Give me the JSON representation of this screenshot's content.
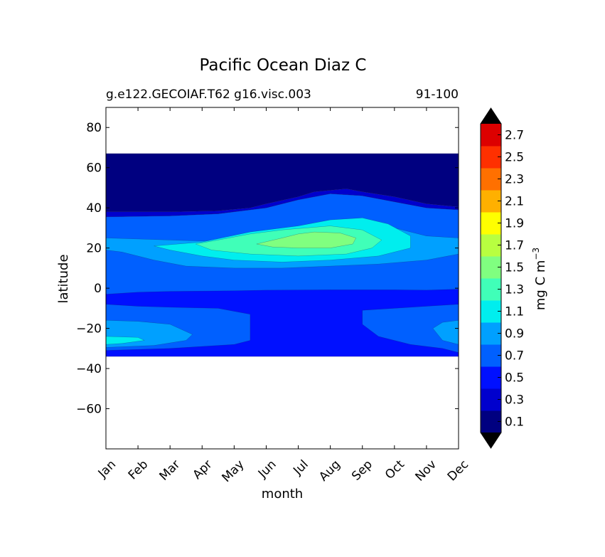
{
  "chart_data": {
    "type": "contourf",
    "title": "Pacific Ocean Diaz C",
    "subtitle_left": "g.e122.GECOIAF.T62 g16.visc.003",
    "subtitle_right": "91-100",
    "xlabel": "month",
    "ylabel": "latitude",
    "x_categories": [
      "Jan",
      "Feb",
      "Mar",
      "Apr",
      "May",
      "Jun",
      "Jul",
      "Aug",
      "Sep",
      "Oct",
      "Nov",
      "Dec"
    ],
    "ylim": [
      -80,
      90
    ],
    "y_ticks": [
      80,
      60,
      40,
      20,
      0,
      -20,
      -40,
      -60
    ],
    "y_tick_labels": [
      "80",
      "60",
      "40",
      "20",
      "0",
      "−20",
      "−40",
      "−60"
    ],
    "data_extent_lat": [
      -34,
      67
    ],
    "colorbar": {
      "label": "mg C m",
      "label_sup": "−3",
      "extend": "both",
      "levels": [
        0,
        0.1,
        0.2,
        0.3,
        0.4,
        0.5,
        0.6,
        0.7,
        0.8,
        0.9,
        1.0,
        1.1,
        1.2,
        1.3,
        1.4,
        1.5,
        1.6,
        1.7,
        1.8,
        1.9,
        2.0,
        2.1,
        2.2,
        2.3,
        2.4,
        2.5,
        2.6,
        2.7,
        2.8
      ],
      "tick_labels": [
        "0.1",
        "0.3",
        "0.5",
        "0.7",
        "0.9",
        "1.1",
        "1.3",
        "1.5",
        "1.7",
        "1.9",
        "2.1",
        "2.3",
        "2.5",
        "2.7"
      ],
      "colors": [
        "#000080",
        "#0000cd",
        "#0010ff",
        "#0060ff",
        "#00a0ff",
        "#00eeee",
        "#40ffb8",
        "#80ff80",
        "#b8ff40",
        "#ffff00",
        "#ffb000",
        "#ff7000",
        "#ff3000",
        "#dd0000",
        "#800000"
      ],
      "under_color": "#000000",
      "over_color": "#000000"
    },
    "regions": [
      {
        "class": 0,
        "color": "#000080",
        "note": "north band",
        "points": [
          [
            0,
            67
          ],
          [
            11,
            67
          ],
          [
            11,
            40.5
          ],
          [
            10,
            42
          ],
          [
            9,
            45.5
          ],
          [
            8,
            48
          ],
          [
            7.5,
            49.5
          ],
          [
            6.5,
            48
          ],
          [
            6,
            45.5
          ],
          [
            5,
            42
          ],
          [
            4.5,
            40
          ],
          [
            3.5,
            38.5
          ],
          [
            2,
            38
          ],
          [
            0,
            38
          ]
        ]
      },
      {
        "class": 1,
        "color": "#0000cd",
        "points": [
          [
            0,
            38
          ],
          [
            2,
            38
          ],
          [
            3.5,
            38.5
          ],
          [
            4.5,
            40
          ],
          [
            5,
            42
          ],
          [
            6,
            45.5
          ],
          [
            6.5,
            48
          ],
          [
            7.5,
            49.5
          ],
          [
            8,
            48
          ],
          [
            9,
            45.5
          ],
          [
            10,
            42
          ],
          [
            11,
            40.5
          ],
          [
            11,
            39
          ],
          [
            10,
            40
          ],
          [
            9,
            43
          ],
          [
            8,
            46
          ],
          [
            7,
            47
          ],
          [
            6,
            44
          ],
          [
            5,
            40
          ],
          [
            3.5,
            37
          ],
          [
            2,
            36
          ],
          [
            0,
            35.5
          ]
        ]
      },
      {
        "class": 2,
        "color": "#0010ff",
        "points": [
          [
            0,
            35.5
          ],
          [
            2,
            36
          ],
          [
            3.5,
            37
          ],
          [
            5,
            40
          ],
          [
            6,
            44
          ],
          [
            7,
            47
          ],
          [
            8,
            46
          ],
          [
            9,
            43
          ],
          [
            10,
            40
          ],
          [
            11,
            39
          ],
          [
            11,
            -34
          ],
          [
            0,
            -34
          ]
        ]
      },
      {
        "class": 3,
        "color": "#0060ff",
        "points": [
          [
            0,
            35.5
          ],
          [
            2,
            36
          ],
          [
            3.5,
            37
          ],
          [
            5,
            40
          ],
          [
            6,
            44
          ],
          [
            7,
            47
          ],
          [
            8,
            46
          ],
          [
            9,
            43
          ],
          [
            10,
            40
          ],
          [
            11,
            39
          ],
          [
            11,
            -0.5
          ],
          [
            10,
            -1
          ],
          [
            9,
            -0.8
          ],
          [
            7,
            -0.8
          ],
          [
            5,
            -1
          ],
          [
            4,
            -1.3
          ],
          [
            2,
            -1.6
          ],
          [
            1,
            -2
          ],
          [
            0,
            -3
          ]
        ]
      },
      {
        "class": 3,
        "color": "#0060ff",
        "note": "southern",
        "points": [
          [
            0,
            -8
          ],
          [
            1,
            -9
          ],
          [
            2,
            -9.5
          ],
          [
            3.5,
            -10
          ],
          [
            4.5,
            -13
          ],
          [
            4.5,
            -20
          ],
          [
            4.5,
            -26
          ],
          [
            4,
            -28
          ],
          [
            3,
            -29
          ],
          [
            2,
            -30
          ],
          [
            0,
            -31
          ]
        ]
      },
      {
        "class": 3,
        "color": "#0060ff",
        "note": "southern east",
        "points": [
          [
            11,
            -8
          ],
          [
            10,
            -9
          ],
          [
            9,
            -10
          ],
          [
            8,
            -11
          ],
          [
            8,
            -18
          ],
          [
            8.5,
            -24
          ],
          [
            9.5,
            -28
          ],
          [
            10.5,
            -30
          ],
          [
            11,
            -32
          ]
        ]
      },
      {
        "class": 4,
        "color": "#00a0ff",
        "points": [
          [
            0,
            25
          ],
          [
            2,
            24
          ],
          [
            3,
            23.5
          ],
          [
            5,
            25
          ],
          [
            6.5,
            30
          ],
          [
            8,
            33
          ],
          [
            9,
            30
          ],
          [
            10,
            26
          ],
          [
            11,
            25
          ],
          [
            11,
            17
          ],
          [
            10,
            14
          ],
          [
            8.5,
            12
          ],
          [
            7,
            11
          ],
          [
            5.5,
            10
          ],
          [
            4,
            10
          ],
          [
            2.5,
            11
          ],
          [
            1.5,
            14
          ],
          [
            0.5,
            18
          ],
          [
            0,
            19
          ]
        ]
      },
      {
        "class": 4,
        "color": "#00a0ff",
        "note": "southern",
        "points": [
          [
            0,
            -16
          ],
          [
            1,
            -16.5
          ],
          [
            2,
            -18
          ],
          [
            2.7,
            -23
          ],
          [
            2.5,
            -26
          ],
          [
            1.5,
            -28.5
          ],
          [
            0,
            -29.5
          ]
        ]
      },
      {
        "class": 4,
        "color": "#00a0ff",
        "note": "southern east",
        "points": [
          [
            11,
            -16
          ],
          [
            10.5,
            -17
          ],
          [
            10.2,
            -20
          ],
          [
            10.5,
            -26
          ],
          [
            11,
            -28
          ]
        ]
      },
      {
        "class": 5,
        "color": "#00eeee",
        "points": [
          [
            1.5,
            21
          ],
          [
            3,
            23
          ],
          [
            4.5,
            28
          ],
          [
            6,
            31
          ],
          [
            7,
            34
          ],
          [
            8,
            35
          ],
          [
            8.8,
            32
          ],
          [
            9.5,
            26
          ],
          [
            9.5,
            20
          ],
          [
            8.5,
            16
          ],
          [
            7,
            14
          ],
          [
            5.5,
            13
          ],
          [
            4,
            14
          ],
          [
            3,
            16
          ],
          [
            2,
            19
          ]
        ]
      },
      {
        "class": 5,
        "color": "#00eeee",
        "note": "southern",
        "points": [
          [
            0,
            -24
          ],
          [
            1,
            -24.5
          ],
          [
            1.2,
            -26
          ],
          [
            0.5,
            -27.5
          ],
          [
            0,
            -28
          ]
        ]
      },
      {
        "class": 6,
        "color": "#40ffb8",
        "points": [
          [
            2.8,
            22
          ],
          [
            3.5,
            24
          ],
          [
            4.5,
            27
          ],
          [
            5.5,
            29
          ],
          [
            7,
            31
          ],
          [
            8,
            29
          ],
          [
            8.6,
            24
          ],
          [
            8.3,
            20
          ],
          [
            7.5,
            17
          ],
          [
            6,
            16
          ],
          [
            4.5,
            17
          ],
          [
            3.3,
            19
          ]
        ]
      },
      {
        "class": 7,
        "color": "#80ff80",
        "points": [
          [
            4.7,
            22
          ],
          [
            5.5,
            25
          ],
          [
            6,
            27
          ],
          [
            6.5,
            28
          ],
          [
            7.3,
            27.5
          ],
          [
            7.8,
            25
          ],
          [
            7.7,
            22
          ],
          [
            7,
            20
          ],
          [
            6,
            20
          ],
          [
            5.2,
            20.5
          ]
        ]
      }
    ]
  }
}
